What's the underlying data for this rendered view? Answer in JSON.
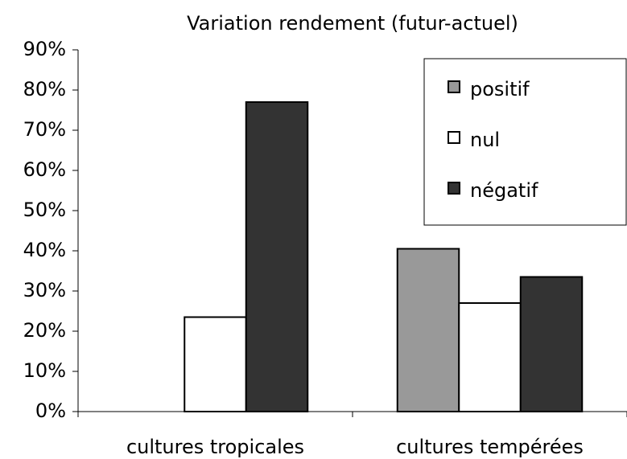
{
  "chart_data": {
    "type": "bar",
    "title": "Variation rendement (futur-actuel)",
    "categories": [
      "cultures tropicales",
      "cultures tempérées"
    ],
    "series": [
      {
        "name": "positif",
        "color": "#999999",
        "values": [
          0,
          40.5
        ]
      },
      {
        "name": "nul",
        "color": "#ffffff",
        "values": [
          23.5,
          27
        ]
      },
      {
        "name": "négatif",
        "color": "#333333",
        "values": [
          77,
          33.5
        ]
      }
    ],
    "ylim": [
      0,
      90
    ],
    "yticks": [
      {
        "value": 0,
        "label": "0%"
      },
      {
        "value": 10,
        "label": "10%"
      },
      {
        "value": 20,
        "label": "20%"
      },
      {
        "value": 30,
        "label": "30%"
      },
      {
        "value": 40,
        "label": "40%"
      },
      {
        "value": 50,
        "label": "50%"
      },
      {
        "value": 60,
        "label": "60%"
      },
      {
        "value": 70,
        "label": "70%"
      },
      {
        "value": 80,
        "label": "80%"
      },
      {
        "value": 90,
        "label": "90%"
      }
    ],
    "grid": false,
    "legend": "upper right"
  }
}
